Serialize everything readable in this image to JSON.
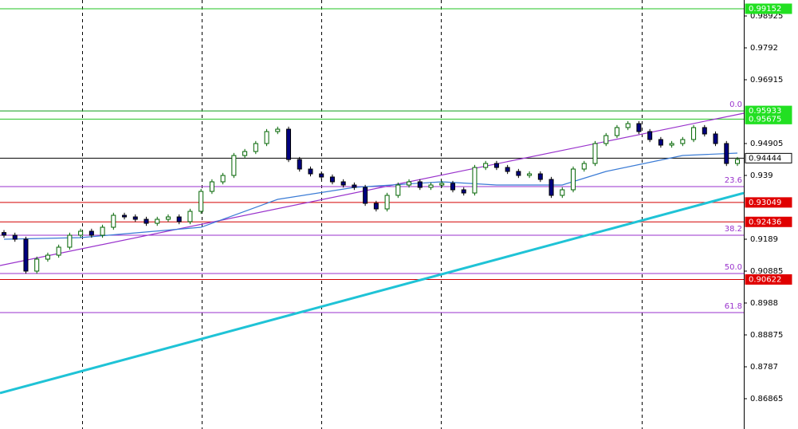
{
  "chart_data": {
    "type": "candlestick",
    "ylim": [
      0.8591,
      0.99428
    ],
    "yticks": [
      0.98925,
      0.9792,
      0.96915,
      0.94905,
      0.939,
      0.9189,
      0.90885,
      0.8988,
      0.88875,
      0.8787,
      0.86865
    ],
    "up_color": "#ffffff",
    "up_stroke": "#006400",
    "down_color": "#000080",
    "down_stroke": "#000000",
    "open": [
      0.921,
      0.92016,
      0.9189,
      0.90885,
      0.91262,
      0.91387,
      0.91639,
      0.92016,
      0.92141,
      0.92016,
      0.92267,
      0.92644,
      0.92593,
      0.92518,
      0.92392,
      0.92518,
      0.92593,
      0.92443,
      0.92769,
      0.93397,
      0.93699,
      0.939,
      0.94528,
      0.94654,
      0.94905,
      0.95282,
      0.95357,
      0.94402,
      0.94101,
      0.9395,
      0.9385,
      0.93699,
      0.93598,
      0.93523,
      0.93021,
      0.92845,
      0.93272,
      0.93598,
      0.93699,
      0.93523,
      0.93598,
      0.93649,
      0.93448,
      0.93347,
      0.94151,
      0.94277,
      0.94151,
      0.94026,
      0.939,
      0.9395,
      0.93774,
      0.93272,
      0.93448,
      0.94101,
      0.94277,
      0.94905,
      0.95156,
      0.95408,
      0.95533,
      0.95282,
      0.95031,
      0.94855,
      0.94905,
      0.95031,
      0.95408,
      0.95207,
      0.94905,
      0.94277
    ],
    "high": [
      0.9218,
      0.92096,
      0.9197,
      0.91342,
      0.91467,
      0.91719,
      0.92096,
      0.92221,
      0.92221,
      0.92347,
      0.92724,
      0.92724,
      0.92673,
      0.92598,
      0.92598,
      0.92673,
      0.92673,
      0.92849,
      0.93477,
      0.93779,
      0.9398,
      0.94608,
      0.94734,
      0.94985,
      0.95362,
      0.95437,
      0.95437,
      0.94482,
      0.94181,
      0.9403,
      0.9393,
      0.93779,
      0.93678,
      0.93603,
      0.93101,
      0.93352,
      0.93678,
      0.93779,
      0.93779,
      0.93678,
      0.93729,
      0.93729,
      0.93528,
      0.94231,
      0.94357,
      0.94357,
      0.94231,
      0.94106,
      0.9403,
      0.9403,
      0.93854,
      0.93528,
      0.94181,
      0.94357,
      0.94985,
      0.95236,
      0.95488,
      0.95613,
      0.95613,
      0.95362,
      0.95111,
      0.94985,
      0.95111,
      0.95488,
      0.95488,
      0.95287,
      0.94985,
      0.94482
    ],
    "low": [
      0.91936,
      0.9181,
      0.90805,
      0.90805,
      0.91182,
      0.91307,
      0.91559,
      0.91936,
      0.91936,
      0.91936,
      0.92187,
      0.92513,
      0.92438,
      0.92312,
      0.92312,
      0.92438,
      0.92363,
      0.92363,
      0.92689,
      0.93317,
      0.93619,
      0.9382,
      0.94448,
      0.94574,
      0.94825,
      0.95202,
      0.94322,
      0.94021,
      0.9387,
      0.9377,
      0.93619,
      0.93518,
      0.93443,
      0.92941,
      0.92765,
      0.92765,
      0.93192,
      0.93518,
      0.93443,
      0.93443,
      0.93518,
      0.93368,
      0.93267,
      0.93267,
      0.94071,
      0.94071,
      0.93946,
      0.9382,
      0.9382,
      0.93694,
      0.93192,
      0.93192,
      0.93368,
      0.94021,
      0.94197,
      0.94825,
      0.95076,
      0.95328,
      0.95202,
      0.94951,
      0.94775,
      0.94775,
      0.94825,
      0.94951,
      0.95127,
      0.94825,
      0.94197,
      0.94197
    ],
    "close": [
      0.92016,
      0.9189,
      0.90885,
      0.91262,
      0.91387,
      0.91639,
      0.92016,
      0.92141,
      0.92016,
      0.92267,
      0.92644,
      0.92593,
      0.92518,
      0.92392,
      0.92518,
      0.92593,
      0.92443,
      0.92769,
      0.93397,
      0.93699,
      0.939,
      0.94528,
      0.94654,
      0.94905,
      0.95282,
      0.95357,
      0.94402,
      0.94101,
      0.9395,
      0.9385,
      0.93699,
      0.93598,
      0.93523,
      0.93021,
      0.92845,
      0.93272,
      0.93598,
      0.93699,
      0.93523,
      0.93598,
      0.93649,
      0.93448,
      0.93347,
      0.94151,
      0.94277,
      0.94151,
      0.94026,
      0.939,
      0.9395,
      0.93774,
      0.93272,
      0.93448,
      0.94101,
      0.94277,
      0.94905,
      0.95156,
      0.95408,
      0.95533,
      0.95282,
      0.95031,
      0.94855,
      0.94905,
      0.95031,
      0.95408,
      0.95207,
      0.94905,
      0.94277,
      0.94402
    ],
    "moving_average": {
      "color": "#3a7bd5",
      "x": [
        0,
        7,
        18,
        25,
        32,
        40,
        45,
        51,
        55,
        62,
        67
      ],
      "values": [
        0.9189,
        0.9194,
        0.92267,
        0.93146,
        0.93523,
        0.93699,
        0.93598,
        0.93598,
        0.94026,
        0.94528,
        0.94603
      ]
    },
    "trendlines": [
      {
        "color": "#9932cc",
        "start": 0.91061,
        "end": 0.9586
      },
      {
        "color": "#1fc3d6",
        "start": 0.87041,
        "end": 0.93347
      }
    ],
    "levels": [
      {
        "price": 0.99152,
        "color": "#22c322",
        "label_bg": "#22e022",
        "label_color": "#ffffff"
      },
      {
        "price": 0.95933,
        "color": "#22c322",
        "label_bg": "#22e022",
        "label_color": "#ffffff"
      },
      {
        "price": 0.95675,
        "color": "#22c322",
        "label_bg": "#22e022",
        "label_color": "#ffffff"
      },
      {
        "price": 0.94444,
        "color": "#000000",
        "label_bg": "#ffffff",
        "label_color": "#000000"
      },
      {
        "price": 0.93049,
        "color": "#d40000",
        "label_bg": "#e00000",
        "label_color": "#ffffff"
      },
      {
        "price": 0.92436,
        "color": "#d40000",
        "label_bg": "#e00000",
        "label_color": "#ffffff"
      },
      {
        "price": 0.90622,
        "color": "#d40000",
        "label_bg": "#e00000",
        "label_color": "#ffffff"
      }
    ],
    "fibonacci": {
      "color": "#9932cc",
      "levels": [
        {
          "label": "0.0",
          "price": 0.95933
        },
        {
          "label": "23.6",
          "price": 0.93548
        },
        {
          "label": "38.2",
          "price": 0.92016
        },
        {
          "label": "50.0",
          "price": 0.9081
        },
        {
          "label": "61.8",
          "price": 0.89579
        }
      ]
    }
  }
}
